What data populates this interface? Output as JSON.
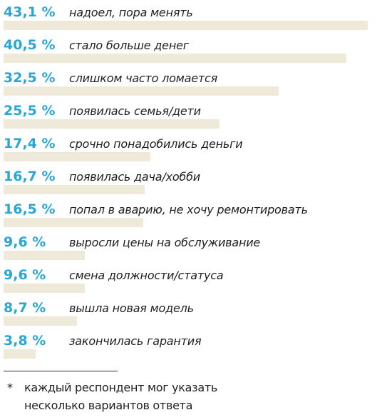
{
  "chart_data": {
    "type": "bar",
    "orientation": "horizontal",
    "categories": [
      "надоел, пора менять",
      "стало больше денег",
      "слишком часто ломается",
      "появилась семья/дети",
      "срочно понадобились деньги",
      "появилась дача/хобби",
      "попал в аварию, не хочу ремонтировать",
      "выросли цены на обслуживание",
      "смена должности/статуса",
      "вышла новая модель",
      "закончилась гарантия"
    ],
    "values": [
      43.1,
      40.5,
      32.5,
      25.5,
      17.4,
      16.7,
      16.5,
      9.6,
      9.6,
      8.7,
      3.8
    ],
    "value_labels": [
      "43,1 %",
      "40,5 %",
      "32,5 %",
      "25,5 %",
      "17,4 %",
      "16,7 %",
      "16,5 %",
      "9,6 %",
      "9,6 %",
      "8,7 %",
      "3,8 %"
    ],
    "xlim": [
      0,
      44.5
    ],
    "colors": {
      "bar": "#efe9da",
      "value_text": "#2aa6d6",
      "label_text": "#1f1f1f"
    },
    "grid": false,
    "legend": "none"
  },
  "footnote": {
    "marker": "*",
    "line1": "каждый респондент мог указать",
    "line2": "несколько вариантов ответа"
  }
}
